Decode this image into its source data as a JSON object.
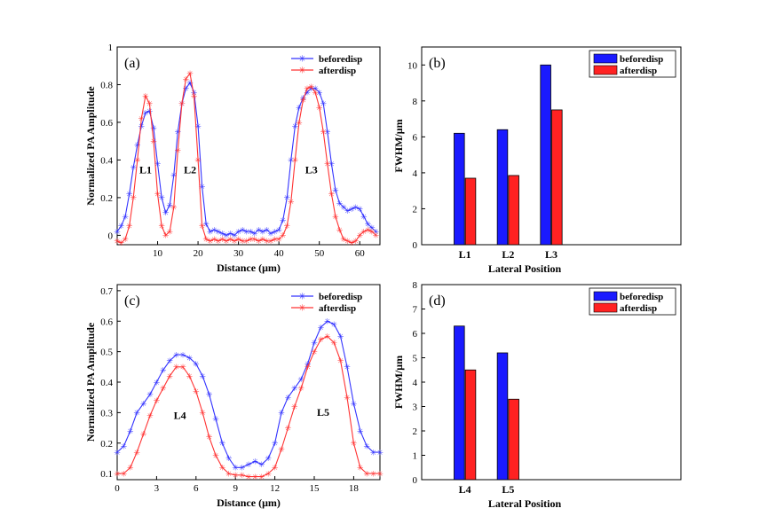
{
  "colors": {
    "before": "#3333ff",
    "after": "#ff3333",
    "bar_before": "#1a1aff",
    "bar_after": "#ff2222"
  },
  "chart_data": [
    {
      "type": "line",
      "panel": "(a)",
      "xlabel": "Distance (μm)",
      "ylabel": "Normalized PA Amplitude",
      "xlim": [
        0,
        65
      ],
      "ylim": [
        -0.05,
        1
      ],
      "xticks": [
        "10",
        "20",
        "30",
        "40",
        "50",
        "60"
      ],
      "yticks": [
        "0",
        "0.2",
        "0.4",
        "0.6",
        "0.8",
        "1"
      ],
      "legend": [
        "beforedisp",
        "afterdisp"
      ],
      "peak_labels": [
        {
          "text": "L1",
          "x": 5.5,
          "y": 0.33
        },
        {
          "text": "L2",
          "x": 16.5,
          "y": 0.33
        },
        {
          "text": "L3",
          "x": 46.5,
          "y": 0.33
        }
      ],
      "series": [
        {
          "name": "beforedisp",
          "points": [
            [
              0,
              0.02
            ],
            [
              1,
              0.05
            ],
            [
              2,
              0.1
            ],
            [
              3,
              0.22
            ],
            [
              4,
              0.36
            ],
            [
              5,
              0.48
            ],
            [
              6,
              0.58
            ],
            [
              7,
              0.65
            ],
            [
              8,
              0.66
            ],
            [
              9,
              0.57
            ],
            [
              10,
              0.38
            ],
            [
              11,
              0.2
            ],
            [
              12,
              0.12
            ],
            [
              13,
              0.16
            ],
            [
              14,
              0.32
            ],
            [
              15,
              0.55
            ],
            [
              16,
              0.7
            ],
            [
              17,
              0.78
            ],
            [
              18,
              0.81
            ],
            [
              19,
              0.76
            ],
            [
              20,
              0.58
            ],
            [
              21,
              0.26
            ],
            [
              22,
              0.06
            ],
            [
              23,
              0.02
            ],
            [
              24,
              0.03
            ],
            [
              25,
              0.02
            ],
            [
              26,
              0.01
            ],
            [
              27,
              0.0
            ],
            [
              28,
              0.01
            ],
            [
              29,
              0.0
            ],
            [
              30,
              0.02
            ],
            [
              31,
              0.03
            ],
            [
              32,
              0.02
            ],
            [
              33,
              0.02
            ],
            [
              34,
              0.01
            ],
            [
              35,
              0.03
            ],
            [
              36,
              0.02
            ],
            [
              37,
              0.03
            ],
            [
              38,
              0.01
            ],
            [
              39,
              0.02
            ],
            [
              40,
              0.03
            ],
            [
              41,
              0.08
            ],
            [
              42,
              0.2
            ],
            [
              43,
              0.4
            ],
            [
              44,
              0.58
            ],
            [
              45,
              0.68
            ],
            [
              46,
              0.73
            ],
            [
              47,
              0.76
            ],
            [
              48,
              0.78
            ],
            [
              49,
              0.78
            ],
            [
              50,
              0.76
            ],
            [
              51,
              0.7
            ],
            [
              52,
              0.55
            ],
            [
              53,
              0.38
            ],
            [
              54,
              0.24
            ],
            [
              55,
              0.17
            ],
            [
              56,
              0.15
            ],
            [
              57,
              0.13
            ],
            [
              58,
              0.14
            ],
            [
              59,
              0.15
            ],
            [
              60,
              0.14
            ],
            [
              61,
              0.1
            ],
            [
              62,
              0.06
            ],
            [
              63,
              0.04
            ],
            [
              64,
              0.02
            ]
          ]
        },
        {
          "name": "afterdisp",
          "points": [
            [
              0,
              -0.03
            ],
            [
              1,
              -0.04
            ],
            [
              2,
              -0.02
            ],
            [
              3,
              0.05
            ],
            [
              4,
              0.2
            ],
            [
              5,
              0.4
            ],
            [
              6,
              0.62
            ],
            [
              7,
              0.74
            ],
            [
              8,
              0.7
            ],
            [
              9,
              0.5
            ],
            [
              10,
              0.22
            ],
            [
              11,
              0.05
            ],
            [
              12,
              0.0
            ],
            [
              13,
              0.02
            ],
            [
              14,
              0.15
            ],
            [
              15,
              0.45
            ],
            [
              16,
              0.7
            ],
            [
              17,
              0.83
            ],
            [
              18,
              0.86
            ],
            [
              19,
              0.74
            ],
            [
              20,
              0.4
            ],
            [
              21,
              0.05
            ],
            [
              22,
              -0.02
            ],
            [
              23,
              -0.03
            ],
            [
              24,
              -0.02
            ],
            [
              25,
              -0.03
            ],
            [
              26,
              -0.02
            ],
            [
              27,
              -0.03
            ],
            [
              28,
              -0.02
            ],
            [
              29,
              -0.03
            ],
            [
              30,
              -0.02
            ],
            [
              31,
              -0.03
            ],
            [
              32,
              -0.03
            ],
            [
              33,
              -0.02
            ],
            [
              34,
              -0.02
            ],
            [
              35,
              -0.03
            ],
            [
              36,
              -0.02
            ],
            [
              37,
              -0.03
            ],
            [
              38,
              -0.03
            ],
            [
              39,
              -0.02
            ],
            [
              40,
              -0.02
            ],
            [
              41,
              0.0
            ],
            [
              42,
              0.05
            ],
            [
              43,
              0.18
            ],
            [
              44,
              0.4
            ],
            [
              45,
              0.6
            ],
            [
              46,
              0.72
            ],
            [
              47,
              0.78
            ],
            [
              48,
              0.79
            ],
            [
              49,
              0.76
            ],
            [
              50,
              0.68
            ],
            [
              51,
              0.55
            ],
            [
              52,
              0.38
            ],
            [
              53,
              0.22
            ],
            [
              54,
              0.1
            ],
            [
              55,
              0.03
            ],
            [
              56,
              -0.02
            ],
            [
              57,
              -0.03
            ],
            [
              58,
              -0.04
            ],
            [
              59,
              -0.03
            ],
            [
              60,
              0.0
            ],
            [
              61,
              0.02
            ],
            [
              62,
              0.03
            ],
            [
              63,
              0.02
            ],
            [
              64,
              0.0
            ]
          ]
        }
      ]
    },
    {
      "type": "bar",
      "panel": "(b)",
      "xlabel": "Lateral Position",
      "ylabel": "FWHM/μm",
      "ylim": [
        0,
        11
      ],
      "yticks": [
        "0",
        "2",
        "4",
        "6",
        "8",
        "10"
      ],
      "categories": [
        "L1",
        "L2",
        "L3"
      ],
      "slots": 6,
      "legend": [
        "beforedisp",
        "afterdisp"
      ],
      "series": [
        {
          "name": "beforedisp",
          "values": [
            6.2,
            6.4,
            10.0
          ]
        },
        {
          "name": "afterdisp",
          "values": [
            3.7,
            3.85,
            7.5
          ]
        }
      ]
    },
    {
      "type": "line",
      "panel": "(c)",
      "xlabel": "Distance (μm)",
      "ylabel": "Normalized PA Amplitude",
      "xlim": [
        0,
        20
      ],
      "ylim": [
        0.08,
        0.72
      ],
      "xticks": [
        "0",
        "3",
        "6",
        "9",
        "12",
        "15",
        "18"
      ],
      "yticks": [
        "0.1",
        "0.2",
        "0.3",
        "0.4",
        "0.5",
        "0.6",
        "0.7"
      ],
      "legend": [
        "beforedisp",
        "afterdisp"
      ],
      "peak_labels": [
        {
          "text": "L4",
          "x": 4.3,
          "y": 0.28
        },
        {
          "text": "L5",
          "x": 15.2,
          "y": 0.29
        }
      ],
      "series": [
        {
          "name": "beforedisp",
          "points": [
            [
              0,
              0.17
            ],
            [
              0.5,
              0.19
            ],
            [
              1,
              0.24
            ],
            [
              1.5,
              0.3
            ],
            [
              2,
              0.33
            ],
            [
              2.5,
              0.36
            ],
            [
              3,
              0.4
            ],
            [
              3.5,
              0.44
            ],
            [
              4,
              0.47
            ],
            [
              4.5,
              0.49
            ],
            [
              5,
              0.49
            ],
            [
              5.5,
              0.48
            ],
            [
              6,
              0.46
            ],
            [
              6.5,
              0.42
            ],
            [
              7,
              0.36
            ],
            [
              7.5,
              0.28
            ],
            [
              8,
              0.2
            ],
            [
              8.5,
              0.15
            ],
            [
              9,
              0.12
            ],
            [
              9.5,
              0.12
            ],
            [
              10,
              0.13
            ],
            [
              10.5,
              0.14
            ],
            [
              11,
              0.13
            ],
            [
              11.5,
              0.15
            ],
            [
              12,
              0.2
            ],
            [
              12.5,
              0.3
            ],
            [
              13,
              0.35
            ],
            [
              13.5,
              0.38
            ],
            [
              14,
              0.41
            ],
            [
              14.5,
              0.46
            ],
            [
              15,
              0.53
            ],
            [
              15.5,
              0.58
            ],
            [
              16,
              0.6
            ],
            [
              16.5,
              0.59
            ],
            [
              17,
              0.55
            ],
            [
              17.5,
              0.45
            ],
            [
              18,
              0.33
            ],
            [
              18.5,
              0.24
            ],
            [
              19,
              0.19
            ],
            [
              19.5,
              0.17
            ],
            [
              20,
              0.17
            ]
          ]
        },
        {
          "name": "afterdisp",
          "points": [
            [
              0,
              0.1
            ],
            [
              0.5,
              0.1
            ],
            [
              1,
              0.12
            ],
            [
              1.5,
              0.17
            ],
            [
              2,
              0.23
            ],
            [
              2.5,
              0.29
            ],
            [
              3,
              0.34
            ],
            [
              3.5,
              0.38
            ],
            [
              4,
              0.42
            ],
            [
              4.5,
              0.45
            ],
            [
              5,
              0.45
            ],
            [
              5.5,
              0.42
            ],
            [
              6,
              0.37
            ],
            [
              6.5,
              0.3
            ],
            [
              7,
              0.22
            ],
            [
              7.5,
              0.16
            ],
            [
              8,
              0.12
            ],
            [
              8.5,
              0.1
            ],
            [
              9,
              0.095
            ],
            [
              9.5,
              0.095
            ],
            [
              10,
              0.09
            ],
            [
              10.5,
              0.09
            ],
            [
              11,
              0.09
            ],
            [
              11.5,
              0.1
            ],
            [
              12,
              0.12
            ],
            [
              12.5,
              0.18
            ],
            [
              13,
              0.25
            ],
            [
              13.5,
              0.32
            ],
            [
              14,
              0.38
            ],
            [
              14.5,
              0.45
            ],
            [
              15,
              0.5
            ],
            [
              15.5,
              0.54
            ],
            [
              16,
              0.55
            ],
            [
              16.5,
              0.53
            ],
            [
              17,
              0.47
            ],
            [
              17.5,
              0.35
            ],
            [
              18,
              0.2
            ],
            [
              18.5,
              0.12
            ],
            [
              19,
              0.1
            ],
            [
              19.5,
              0.1
            ],
            [
              20,
              0.1
            ]
          ]
        }
      ]
    },
    {
      "type": "bar",
      "panel": "(d)",
      "xlabel": "Lateral Position",
      "ylabel": "FWHM/μm",
      "ylim": [
        0,
        8
      ],
      "yticks": [
        "0",
        "1",
        "2",
        "3",
        "4",
        "5",
        "6",
        "7",
        "8"
      ],
      "categories": [
        "L4",
        "L5"
      ],
      "slots": 6,
      "legend": [
        "beforedisp",
        "afterdisp"
      ],
      "series": [
        {
          "name": "beforedisp",
          "values": [
            6.3,
            5.2
          ]
        },
        {
          "name": "afterdisp",
          "values": [
            4.5,
            3.3
          ]
        }
      ]
    }
  ]
}
